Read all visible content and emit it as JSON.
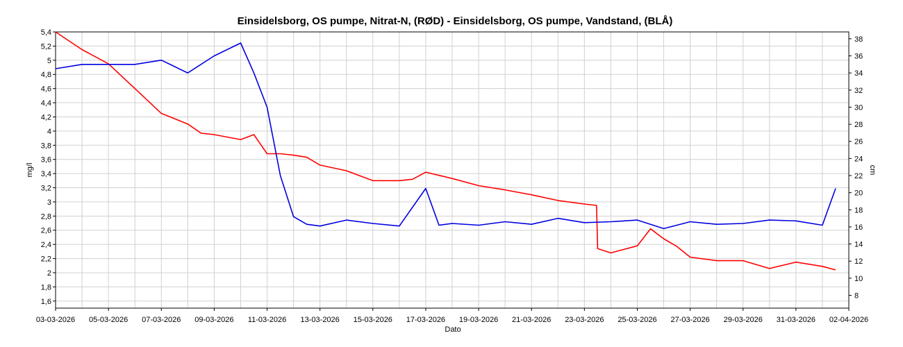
{
  "chart_data": {
    "type": "line",
    "title": "Einsidelsborg, OS pumpe, Nitrat-N, (RØD)  -  Einsidelsborg, OS pumpe, Vandstand, (BLÅ)",
    "xlabel": "Dato",
    "ylabel_left": "mg/l",
    "ylabel_right": "cm",
    "x_range": [
      "2026-03-03",
      "2026-04-02"
    ],
    "x_tick_labels": [
      "03-03-2026",
      "05-03-2026",
      "07-03-2026",
      "09-03-2026",
      "11-03-2026",
      "13-03-2026",
      "15-03-2026",
      "17-03-2026",
      "19-03-2026",
      "21-03-2026",
      "23-03-2026",
      "25-03-2026",
      "27-03-2026",
      "29-03-2026",
      "31-03-2026",
      "02-04-2026"
    ],
    "ylim_left": [
      1.5,
      5.4
    ],
    "ylim_right": [
      6.5,
      38.8
    ],
    "y_left_ticks": [
      1.6,
      1.8,
      2,
      2.2,
      2.4,
      2.6,
      2.8,
      3,
      3.2,
      3.4,
      3.6,
      3.8,
      4,
      4.2,
      4.4,
      4.6,
      4.8,
      5,
      5.2,
      5.4
    ],
    "y_left_tick_labels": [
      "1,6",
      "1,8",
      "2",
      "2,2",
      "2,4",
      "2,6",
      "2,8",
      "3",
      "3,2",
      "3,4",
      "3,6",
      "3,8",
      "4",
      "4,2",
      "4,4",
      "4,6",
      "4,8",
      "5",
      "5,2",
      "5,4"
    ],
    "y_right_ticks": [
      8,
      10,
      12,
      14,
      16,
      18,
      20,
      22,
      24,
      26,
      28,
      30,
      32,
      34,
      36,
      38
    ],
    "y_right_tick_labels": [
      "8",
      "10",
      "12",
      "14",
      "16",
      "18",
      "20",
      "22",
      "24",
      "26",
      "28",
      "30",
      "32",
      "34",
      "36",
      "38"
    ],
    "grid": true,
    "series": [
      {
        "name": "Nitrat-N",
        "axis": "left",
        "color": "#ff0000",
        "x": [
          "2026-03-03",
          "2026-03-04",
          "2026-03-05",
          "2026-03-06",
          "2026-03-07",
          "2026-03-08",
          "2026-03-08T12:00",
          "2026-03-09",
          "2026-03-10",
          "2026-03-10T12:00",
          "2026-03-11",
          "2026-03-11T12:00",
          "2026-03-12",
          "2026-03-12T12:00",
          "2026-03-13",
          "2026-03-14",
          "2026-03-15",
          "2026-03-16",
          "2026-03-16T12:00",
          "2026-03-17",
          "2026-03-18",
          "2026-03-19",
          "2026-03-20",
          "2026-03-21",
          "2026-03-22",
          "2026-03-23",
          "2026-03-23T11:00",
          "2026-03-23T12:00",
          "2026-03-24",
          "2026-03-25",
          "2026-03-25T12:00",
          "2026-03-26",
          "2026-03-26T12:00",
          "2026-03-27",
          "2026-03-28",
          "2026-03-29",
          "2026-03-30",
          "2026-03-31",
          "2026-04-01",
          "2026-04-01T12:00"
        ],
        "values": [
          5.4,
          5.15,
          4.95,
          4.6,
          4.25,
          4.1,
          3.97,
          3.95,
          3.88,
          3.95,
          3.68,
          3.68,
          3.66,
          3.63,
          3.52,
          3.44,
          3.3,
          3.3,
          3.32,
          3.42,
          3.33,
          3.23,
          3.17,
          3.1,
          3.02,
          2.97,
          2.95,
          2.34,
          2.28,
          2.38,
          2.62,
          2.48,
          2.37,
          2.22,
          2.17,
          2.17,
          2.06,
          2.15,
          2.09,
          2.04
        ]
      },
      {
        "name": "Vandstand",
        "axis": "right",
        "color": "#0000e0",
        "x": [
          "2026-03-03",
          "2026-03-04",
          "2026-03-05",
          "2026-03-06",
          "2026-03-07",
          "2026-03-08",
          "2026-03-09",
          "2026-03-10",
          "2026-03-10T12:00",
          "2026-03-11",
          "2026-03-11T12:00",
          "2026-03-12",
          "2026-03-12T12:00",
          "2026-03-13",
          "2026-03-14",
          "2026-03-15",
          "2026-03-16",
          "2026-03-17",
          "2026-03-17T12:00",
          "2026-03-18",
          "2026-03-19",
          "2026-03-20",
          "2026-03-21",
          "2026-03-22",
          "2026-03-23",
          "2026-03-24",
          "2026-03-25",
          "2026-03-26",
          "2026-03-27",
          "2026-03-28",
          "2026-03-29",
          "2026-03-30",
          "2026-03-31",
          "2026-04-01",
          "2026-04-01T12:00"
        ],
        "values": [
          34.5,
          35,
          35,
          35,
          35.5,
          34,
          36,
          37.5,
          34,
          30,
          22,
          17.2,
          16.3,
          16.1,
          16.8,
          16.4,
          16.1,
          20.5,
          16.2,
          16.4,
          16.2,
          16.6,
          16.3,
          17.0,
          16.5,
          16.6,
          16.8,
          15.8,
          16.6,
          16.3,
          16.4,
          16.8,
          16.7,
          16.2,
          20.5
        ]
      }
    ]
  }
}
